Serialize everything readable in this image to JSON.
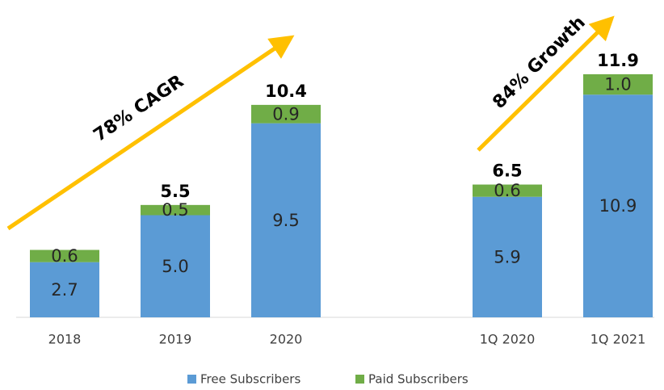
{
  "chart_data": {
    "type": "stacked-bar",
    "categories": [
      "2018",
      "2019",
      "2020",
      "1Q 2020",
      "1Q 2021"
    ],
    "series": [
      {
        "name": "Free Subscribers",
        "color": "#5b9bd5",
        "values": [
          2.7,
          5.0,
          9.5,
          5.9,
          10.9
        ],
        "value_labels": [
          "2.7",
          "5.0",
          "9.5",
          "5.9",
          "10.9"
        ]
      },
      {
        "name": "Paid Subscribers",
        "color": "#70ad47",
        "values": [
          0.6,
          0.5,
          0.9,
          0.6,
          1.0
        ],
        "value_labels": [
          "0.6",
          "0.5",
          "0.9",
          "0.6",
          "1.0"
        ]
      }
    ],
    "totals": [
      null,
      5.5,
      10.4,
      6.5,
      11.9
    ],
    "ylim": [
      0,
      15
    ],
    "annotations": [
      "78% CAGR",
      "84% Growth"
    ],
    "legend": "bottom"
  }
}
